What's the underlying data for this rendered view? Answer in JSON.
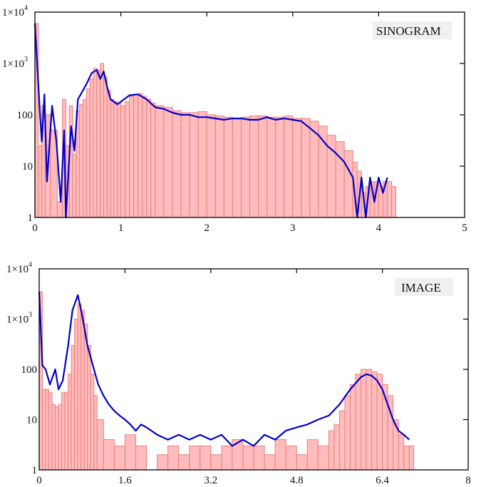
{
  "chart_data": [
    {
      "type": "bar",
      "overlay": "line",
      "title": "SINOGRAM",
      "xlabel": "",
      "ylabel": "",
      "xlim": [
        0,
        5
      ],
      "ylim": [
        1,
        10000
      ],
      "yscale": "log",
      "xticks": [
        "0",
        "1",
        "2",
        "3",
        "4",
        "5"
      ],
      "yticks": [
        "1",
        "10",
        "100",
        "1×10^3",
        "1×10^4"
      ],
      "grid": false,
      "bar_color": "#ffbcbc",
      "bar_edge_color": "#e88080",
      "line_color": "#0000c8",
      "bin_width": 0.033,
      "series": [
        {
          "name": "histogram",
          "x": [
            0.0,
            0.04,
            0.08,
            0.12,
            0.18,
            0.26,
            0.32,
            0.36,
            0.4,
            0.44,
            0.48,
            0.52,
            0.56,
            0.6,
            0.64,
            0.68,
            0.72,
            0.76,
            0.8,
            0.84,
            0.88,
            0.92,
            0.96,
            1.0,
            1.05,
            1.1,
            1.15,
            1.2,
            1.25,
            1.3,
            1.35,
            1.4,
            1.5,
            1.6,
            1.7,
            1.8,
            1.9,
            2.0,
            2.1,
            2.2,
            2.3,
            2.4,
            2.5,
            2.6,
            2.7,
            2.8,
            2.9,
            3.0,
            3.1,
            3.2,
            3.3,
            3.4,
            3.5,
            3.6,
            3.7,
            3.75,
            3.8,
            3.85,
            3.9,
            3.95,
            4.0,
            4.05,
            4.1,
            4.15
          ],
          "values": [
            6000,
            25,
            150,
            100,
            50,
            2,
            200,
            25,
            150,
            17,
            120,
            160,
            200,
            320,
            500,
            800,
            750,
            1000,
            550,
            300,
            200,
            180,
            170,
            150,
            180,
            230,
            250,
            260,
            230,
            200,
            170,
            150,
            140,
            120,
            110,
            110,
            115,
            100,
            95,
            90,
            85,
            90,
            95,
            95,
            90,
            90,
            95,
            85,
            85,
            75,
            60,
            40,
            30,
            20,
            12,
            8,
            3,
            4,
            5,
            5,
            4,
            5,
            5,
            4
          ]
        },
        {
          "name": "line",
          "x": [
            0.0,
            0.02,
            0.06,
            0.08,
            0.11,
            0.14,
            0.2,
            0.25,
            0.3,
            0.34,
            0.36,
            0.42,
            0.46,
            0.5,
            0.56,
            0.6,
            0.66,
            0.72,
            0.76,
            0.8,
            0.84,
            0.88,
            0.96,
            1.0,
            1.1,
            1.2,
            1.3,
            1.4,
            1.5,
            1.6,
            1.7,
            1.8,
            1.9,
            2.0,
            2.1,
            2.2,
            2.3,
            2.4,
            2.5,
            2.6,
            2.7,
            2.8,
            2.9,
            3.0,
            3.1,
            3.2,
            3.3,
            3.4,
            3.5,
            3.6,
            3.7,
            3.75,
            3.8,
            3.85,
            3.9,
            3.95,
            4.0,
            4.05,
            4.1
          ],
          "values": [
            6000,
            1500,
            100,
            30,
            250,
            5,
            150,
            30,
            2,
            50,
            1,
            60,
            20,
            200,
            300,
            400,
            650,
            750,
            500,
            700,
            350,
            200,
            160,
            180,
            240,
            250,
            200,
            140,
            130,
            110,
            100,
            100,
            90,
            90,
            85,
            80,
            85,
            85,
            80,
            80,
            90,
            80,
            85,
            80,
            75,
            55,
            40,
            25,
            18,
            12,
            6,
            1,
            6,
            1,
            6,
            2,
            6,
            3,
            6
          ]
        }
      ]
    },
    {
      "type": "bar",
      "overlay": "line",
      "title": "IMAGE",
      "xlabel": "",
      "ylabel": "",
      "xlim": [
        0,
        8
      ],
      "ylim": [
        1,
        10000
      ],
      "yscale": "log",
      "xticks": [
        "0",
        "1.6",
        "3.2",
        "4.8",
        "6.4",
        "8"
      ],
      "yticks": [
        "1",
        "10",
        "100",
        "1×10^3",
        "1×10^4"
      ],
      "grid": false,
      "bar_color": "#ffbcbc",
      "bar_edge_color": "#e88080",
      "line_color": "#0000c8",
      "bin_width": 0.056,
      "series": [
        {
          "name": "histogram",
          "x": [
            0.0,
            0.06,
            0.12,
            0.18,
            0.24,
            0.3,
            0.36,
            0.42,
            0.48,
            0.54,
            0.6,
            0.66,
            0.72,
            0.78,
            0.84,
            0.9,
            0.96,
            1.02,
            1.08,
            1.2,
            1.4,
            1.6,
            1.8,
            2.0,
            2.2,
            2.4,
            2.6,
            2.8,
            3.0,
            3.2,
            3.4,
            3.6,
            3.8,
            4.0,
            4.2,
            4.4,
            4.6,
            4.8,
            5.0,
            5.2,
            5.4,
            5.5,
            5.6,
            5.7,
            5.8,
            5.9,
            6.0,
            6.1,
            6.2,
            6.3,
            6.4,
            6.5,
            6.6,
            6.7,
            6.8,
            6.9
          ],
          "values": [
            3500,
            40,
            40,
            35,
            20,
            18,
            20,
            35,
            35,
            80,
            300,
            1000,
            2000,
            1500,
            800,
            300,
            80,
            30,
            10,
            4,
            3,
            5,
            3,
            1,
            2,
            3,
            2,
            3,
            3,
            2,
            3,
            4,
            3,
            3,
            2,
            4,
            3,
            2,
            4,
            3,
            6,
            8,
            15,
            30,
            50,
            80,
            100,
            100,
            90,
            80,
            50,
            30,
            10,
            5,
            3,
            3
          ]
        },
        {
          "name": "line",
          "x": [
            0.0,
            0.06,
            0.12,
            0.2,
            0.3,
            0.36,
            0.44,
            0.54,
            0.62,
            0.72,
            0.8,
            0.9,
            1.0,
            1.1,
            1.2,
            1.3,
            1.4,
            1.5,
            1.6,
            1.7,
            1.8,
            1.9,
            2.0,
            2.2,
            2.4,
            2.6,
            2.8,
            3.0,
            3.2,
            3.4,
            3.6,
            3.8,
            4.0,
            4.2,
            4.4,
            4.6,
            4.8,
            5.0,
            5.2,
            5.4,
            5.6,
            5.8,
            6.0,
            6.1,
            6.2,
            6.3,
            6.4,
            6.5,
            6.6,
            6.7,
            6.8,
            6.9
          ],
          "values": [
            3500,
            120,
            100,
            50,
            100,
            40,
            60,
            300,
            1500,
            3000,
            1200,
            300,
            120,
            50,
            30,
            20,
            15,
            12,
            10,
            8,
            6,
            8,
            7,
            5,
            4,
            5,
            4,
            5,
            4,
            5,
            3,
            4,
            3,
            5,
            4,
            6,
            7,
            8,
            10,
            12,
            20,
            40,
            70,
            80,
            75,
            60,
            40,
            20,
            10,
            6,
            5,
            4
          ]
        }
      ]
    }
  ],
  "panels": {
    "top": {
      "label": "SINOGRAM",
      "x_ticks": [
        "0",
        "1",
        "2",
        "3",
        "4",
        "5"
      ],
      "y_ticks": [
        {
          "base": "1",
          "exp": ""
        },
        {
          "base": "10",
          "exp": ""
        },
        {
          "base": "100",
          "exp": ""
        },
        {
          "base": "1×10",
          "exp": "3"
        },
        {
          "base": "1×10",
          "exp": "4"
        }
      ]
    },
    "bottom": {
      "label": "IMAGE",
      "x_ticks": [
        "0",
        "1.6",
        "3.2",
        "4.8",
        "6.4",
        "8"
      ],
      "y_ticks": [
        {
          "base": "1",
          "exp": ""
        },
        {
          "base": "10",
          "exp": ""
        },
        {
          "base": "100",
          "exp": ""
        },
        {
          "base": "1×10",
          "exp": "3"
        },
        {
          "base": "1×10",
          "exp": "4"
        }
      ]
    }
  }
}
